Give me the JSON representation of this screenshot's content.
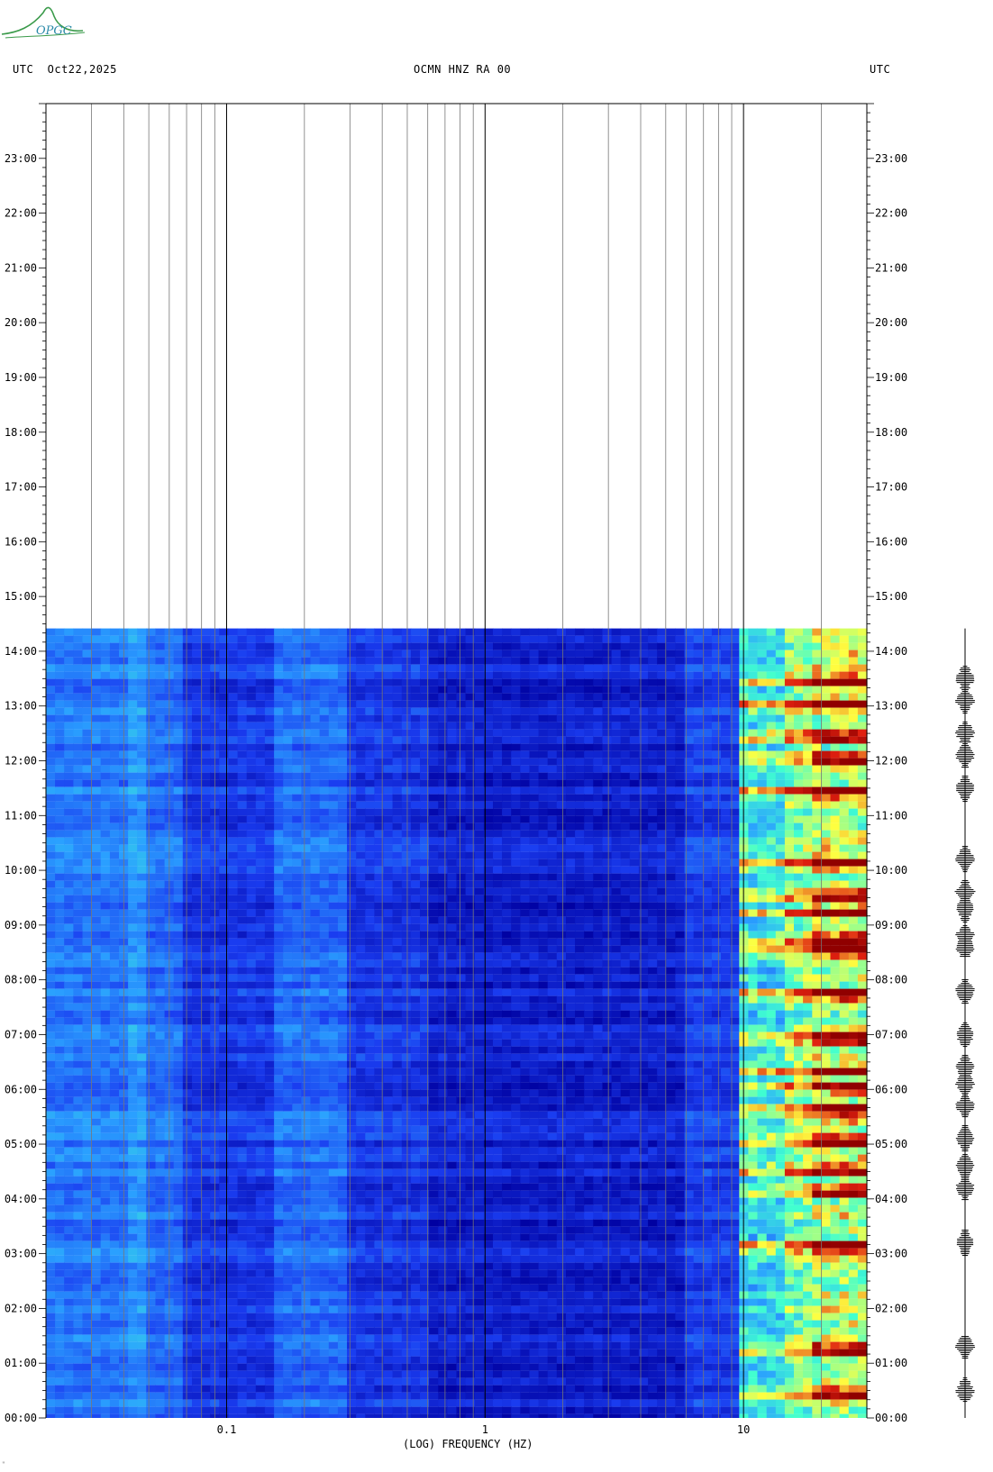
{
  "header": {
    "left": "UTC  Oct22,2025",
    "center": "OCMN HNZ RA 00",
    "right": "UTC"
  },
  "logo": {
    "text": "OPGC"
  },
  "footer_mark": "ʺ",
  "chart_data": {
    "type": "heatmap",
    "title": "OCMN HNZ RA 00",
    "date": "Oct22,2025",
    "timezone": "UTC",
    "xlabel": "(LOG) FREQUENCY (HZ)",
    "x_scale": "log",
    "xlim": [
      0.02,
      30
    ],
    "x_ticks": [
      {
        "value": 0.1,
        "label": "0.1"
      },
      {
        "value": 1,
        "label": "1"
      },
      {
        "value": 10,
        "label": "10"
      }
    ],
    "x_gridlines": [
      0.03,
      0.04,
      0.05,
      0.06,
      0.07,
      0.08,
      0.09,
      0.1,
      0.2,
      0.3,
      0.4,
      0.5,
      0.6,
      0.7,
      0.8,
      0.9,
      1,
      2,
      3,
      4,
      5,
      6,
      7,
      8,
      9,
      10,
      20
    ],
    "ylim_hours": [
      0,
      24
    ],
    "y_ticks": [
      "00:00",
      "01:00",
      "02:00",
      "03:00",
      "04:00",
      "05:00",
      "06:00",
      "07:00",
      "08:00",
      "09:00",
      "10:00",
      "11:00",
      "12:00",
      "13:00",
      "14:00",
      "15:00",
      "16:00",
      "17:00",
      "18:00",
      "19:00",
      "20:00",
      "21:00",
      "22:00",
      "23:00"
    ],
    "data_end_time": "14:25",
    "colormap": [
      "#0000a0",
      "#1a3cf0",
      "#2aa0ff",
      "#40ffd0",
      "#ffff40",
      "#e02010",
      "#900000"
    ],
    "high_energy_band_hz": [
      10,
      30
    ],
    "trace_events_hours": [
      0.5,
      1.3,
      3.2,
      4.2,
      4.6,
      5.1,
      5.7,
      6.1,
      6.4,
      7.0,
      7.8,
      8.6,
      8.8,
      9.3,
      9.6,
      10.2,
      11.5,
      12.1,
      12.5,
      13.1,
      13.5
    ]
  }
}
